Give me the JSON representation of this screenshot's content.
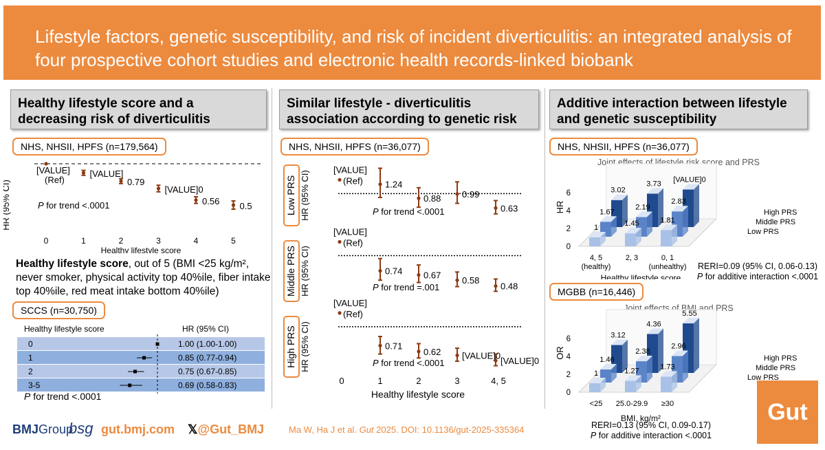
{
  "title": "Lifestyle factors, genetic susceptibility, and risk of incident diverticulitis: an integrated analysis of four prospective cohort studies and electronic health records-linked biobank",
  "panel1": {
    "heading": "Healthy lifestyle score and a decreasing risk of diverticulitis",
    "cohort": "NHS, NHSII, HPFS (n=179,564)",
    "ylabel": "HR (95% CI)",
    "xlabel": "Healthy lifestyle score",
    "trend_p": "P",
    "trend_text": " for trend <.0001",
    "desc_bold": "Healthy lifestyle score",
    "desc_rest": ", out of 5 (BMI <25 kg/m², never smoker, physical activity top 40%ile, fiber intake top 40%ile, red meat intake bottom 40%ile)",
    "sccs": {
      "cohort": "SCCS (n=30,750)",
      "col1": "Healthy lifestyle score",
      "col2": "HR (95% CI)",
      "rows": [
        {
          "score": "0",
          "hr": "1.00 (1.00-1.00)",
          "est": 1.0,
          "lo": 1.0,
          "hi": 1.0
        },
        {
          "score": "1",
          "hr": "0.85 (0.77-0.94)",
          "est": 0.85,
          "lo": 0.77,
          "hi": 0.94
        },
        {
          "score": "2",
          "hr": "0.75 (0.67-0.85)",
          "est": 0.75,
          "lo": 0.67,
          "hi": 0.85
        },
        {
          "score": "3-5",
          "hr": "0.69 (0.58-0.83)",
          "est": 0.69,
          "lo": 0.58,
          "hi": 0.83
        }
      ],
      "trend_p": "P",
      "trend_text": " for trend <.0001"
    }
  },
  "panel2": {
    "heading": "Similar lifestyle - diverticulitis association according to genetic risk",
    "cohort": "NHS, NHSII, HPFS (n=36,077)",
    "ylabel": "HR (95% CI)",
    "xlabel": "Healthy lifestyle score",
    "strata": [
      {
        "label": "Low PRS",
        "trend_p": "P",
        "trend_text": " for trend <.0001"
      },
      {
        "label": "Middle PRS",
        "trend_p": "P",
        "trend_text": " for trend =.001"
      },
      {
        "label": "High PRS",
        "trend_p": "P",
        "trend_text": " for trend <.0001"
      }
    ]
  },
  "panel3": {
    "heading": "Additive interaction between lifestyle and genetic susceptibility",
    "cohort1": "NHS, NHSII, HPFS (n=36,077)",
    "chart1_title": "Joint effects of lifestyle risk score and PRS",
    "chart1_ylabel": "HR",
    "chart1_xlabel": "Healthy lifestyle score",
    "chart1_xcats": [
      "4, 5",
      "2, 3",
      "0, 1"
    ],
    "chart1_xsub": [
      "(healthy)",
      "",
      "(unhealthy)"
    ],
    "rr1": "RERI=0.09 (95% CI, 0.06-0.13)",
    "add1_p": "P",
    "add1_text": " for additive interaction <.0001",
    "cohort2": "MGBB (n=16,446)",
    "chart2_title": "Joint effects of BMI and PRS",
    "chart2_ylabel": "OR",
    "chart2_xlabel": "BMI, kg/m²",
    "chart2_xcats": [
      "<25",
      "25.0-29.9",
      "≥30"
    ],
    "rr2": "RERI=0.13 (95% CI, 0.09-0.17)",
    "add2_p": "P",
    "add2_text": " for additive interaction <.0001",
    "series_labels": [
      "High PRS",
      "Middle PRS",
      "Low PRS"
    ]
  },
  "footer": {
    "bmj": "BMJ",
    "group": "Group",
    "bsg": "bsg",
    "site": "gut.bmj.com",
    "x_handle": "@Gut_BMJ",
    "citation_pre": "Ma W, Ha J et al. ",
    "citation_journal": "Gut",
    "citation_post": " 2025. DOI: 10.1136/gut-2025-335364",
    "logo": "Gut"
  },
  "chart_data": [
    {
      "type": "scatter",
      "title": "Healthy lifestyle score and risk of diverticulitis (NHS, NHSII, HPFS)",
      "xlabel": "Healthy lifestyle score",
      "ylabel": "HR (95% CI)",
      "x": [
        0,
        1,
        2,
        3,
        4,
        5
      ],
      "tick_labels": [
        "0",
        "1",
        "2",
        "3",
        "4",
        "5"
      ],
      "values": [
        1.0,
        0.89,
        0.79,
        0.7,
        0.56,
        0.5
      ],
      "ci_low": [
        1.0,
        0.86,
        0.76,
        0.66,
        0.52,
        0.45
      ],
      "ci_high": [
        1.0,
        0.92,
        0.82,
        0.74,
        0.6,
        0.55
      ],
      "data_labels": [
        "[VALUE]",
        "[VALUE]",
        "0.79",
        "[VALUE]0",
        "0.56",
        "0.5"
      ],
      "ref_label": "(Ref)",
      "ylim": [
        0.4,
        1.1
      ]
    },
    {
      "type": "scatter",
      "title": "Low PRS",
      "x": [
        0,
        1,
        2,
        3,
        4
      ],
      "tick_labels": [
        "0",
        "1",
        "2",
        "3",
        "4, 5"
      ],
      "values": [
        1.0,
        1.24,
        0.88,
        0.99,
        0.63
      ],
      "ci_low": [
        1.0,
        0.9,
        0.65,
        0.75,
        0.48
      ],
      "ci_high": [
        1.0,
        1.65,
        1.15,
        1.3,
        0.82
      ],
      "data_labels": [
        "[VALUE]",
        "1.24",
        "0.88",
        "0.99",
        "0.63"
      ],
      "ref_label": "(Ref)",
      "ylim": [
        0.3,
        1.8
      ]
    },
    {
      "type": "scatter",
      "title": "Middle PRS",
      "x": [
        0,
        1,
        2,
        3,
        4
      ],
      "tick_labels": [
        "0",
        "1",
        "2",
        "3",
        "4, 5"
      ],
      "values": [
        1.0,
        0.74,
        0.67,
        0.58,
        0.48
      ],
      "ci_low": [
        1.0,
        0.58,
        0.54,
        0.47,
        0.39
      ],
      "ci_high": [
        1.0,
        0.95,
        0.84,
        0.72,
        0.6
      ],
      "data_labels": [
        "[VALUE]",
        "0.74",
        "0.67",
        "0.58",
        "0.48"
      ],
      "ref_label": "(Ref)",
      "ylim": [
        0.3,
        1.3
      ]
    },
    {
      "type": "scatter",
      "title": "High PRS",
      "x": [
        0,
        1,
        2,
        3,
        4
      ],
      "tick_labels": [
        "0",
        "1",
        "2",
        "3",
        "4, 5"
      ],
      "values": [
        1.0,
        0.71,
        0.62,
        0.56,
        0.48
      ],
      "ci_low": [
        1.0,
        0.58,
        0.52,
        0.47,
        0.4
      ],
      "ci_high": [
        1.0,
        0.85,
        0.74,
        0.67,
        0.58
      ],
      "data_labels": [
        "[VALUE]",
        "0.71",
        "0.62",
        "[VALUE]0",
        "[VALUE]0"
      ],
      "ref_label": "(Ref)",
      "ylim": [
        0.3,
        1.2
      ]
    },
    {
      "type": "bar",
      "title": "Joint effects of lifestyle risk score and PRS",
      "xlabel": "Healthy lifestyle score",
      "ylabel": "HR",
      "categories": [
        "4, 5 (healthy)",
        "2, 3",
        "0, 1 (unhealthy)"
      ],
      "series": [
        {
          "name": "Low PRS",
          "values": [
            1,
            1.45,
            1.81
          ]
        },
        {
          "name": "Middle PRS",
          "values": [
            1.67,
            2.19,
            2.83
          ]
        },
        {
          "name": "High PRS",
          "values": [
            3.02,
            3.73,
            4.2
          ]
        }
      ],
      "data_labels": {
        "Low PRS": [
          "1",
          "1.45",
          "1.81"
        ],
        "Middle PRS": [
          "1.67",
          "2.19",
          "2.83"
        ],
        "High PRS": [
          "3.02",
          "3.73",
          "[VALUE]0"
        ]
      },
      "yticks": [
        "0",
        "2",
        "4",
        "6"
      ],
      "ylim": [
        0,
        6
      ]
    },
    {
      "type": "bar",
      "title": "Joint effects of BMI and PRS",
      "xlabel": "BMI, kg/m²",
      "ylabel": "OR",
      "categories": [
        "<25",
        "25.0-29.9",
        "≥30"
      ],
      "series": [
        {
          "name": "Low PRS",
          "values": [
            1,
            1.27,
            1.73
          ]
        },
        {
          "name": "Middle PRS",
          "values": [
            1.46,
            2.38,
            2.96
          ]
        },
        {
          "name": "High PRS",
          "values": [
            3.12,
            4.36,
            5.55
          ]
        }
      ],
      "data_labels": {
        "Low PRS": [
          "1",
          "1.27",
          "1.73"
        ],
        "Middle PRS": [
          "1.46",
          "2.38",
          "2.96"
        ],
        "High PRS": [
          "3.12",
          "4.36",
          "5.55"
        ]
      },
      "yticks": [
        "0",
        "2",
        "4",
        "6"
      ],
      "ylim": [
        0,
        6
      ]
    }
  ],
  "colors": {
    "banner": "#ec8a3e",
    "point": "#8b3a12",
    "low": "#a9c1e6",
    "mid": "#5b84c8",
    "high": "#1f4a8e",
    "sccs_row_a": "#b7c7e7",
    "sccs_row_b": "#8fb0de"
  }
}
